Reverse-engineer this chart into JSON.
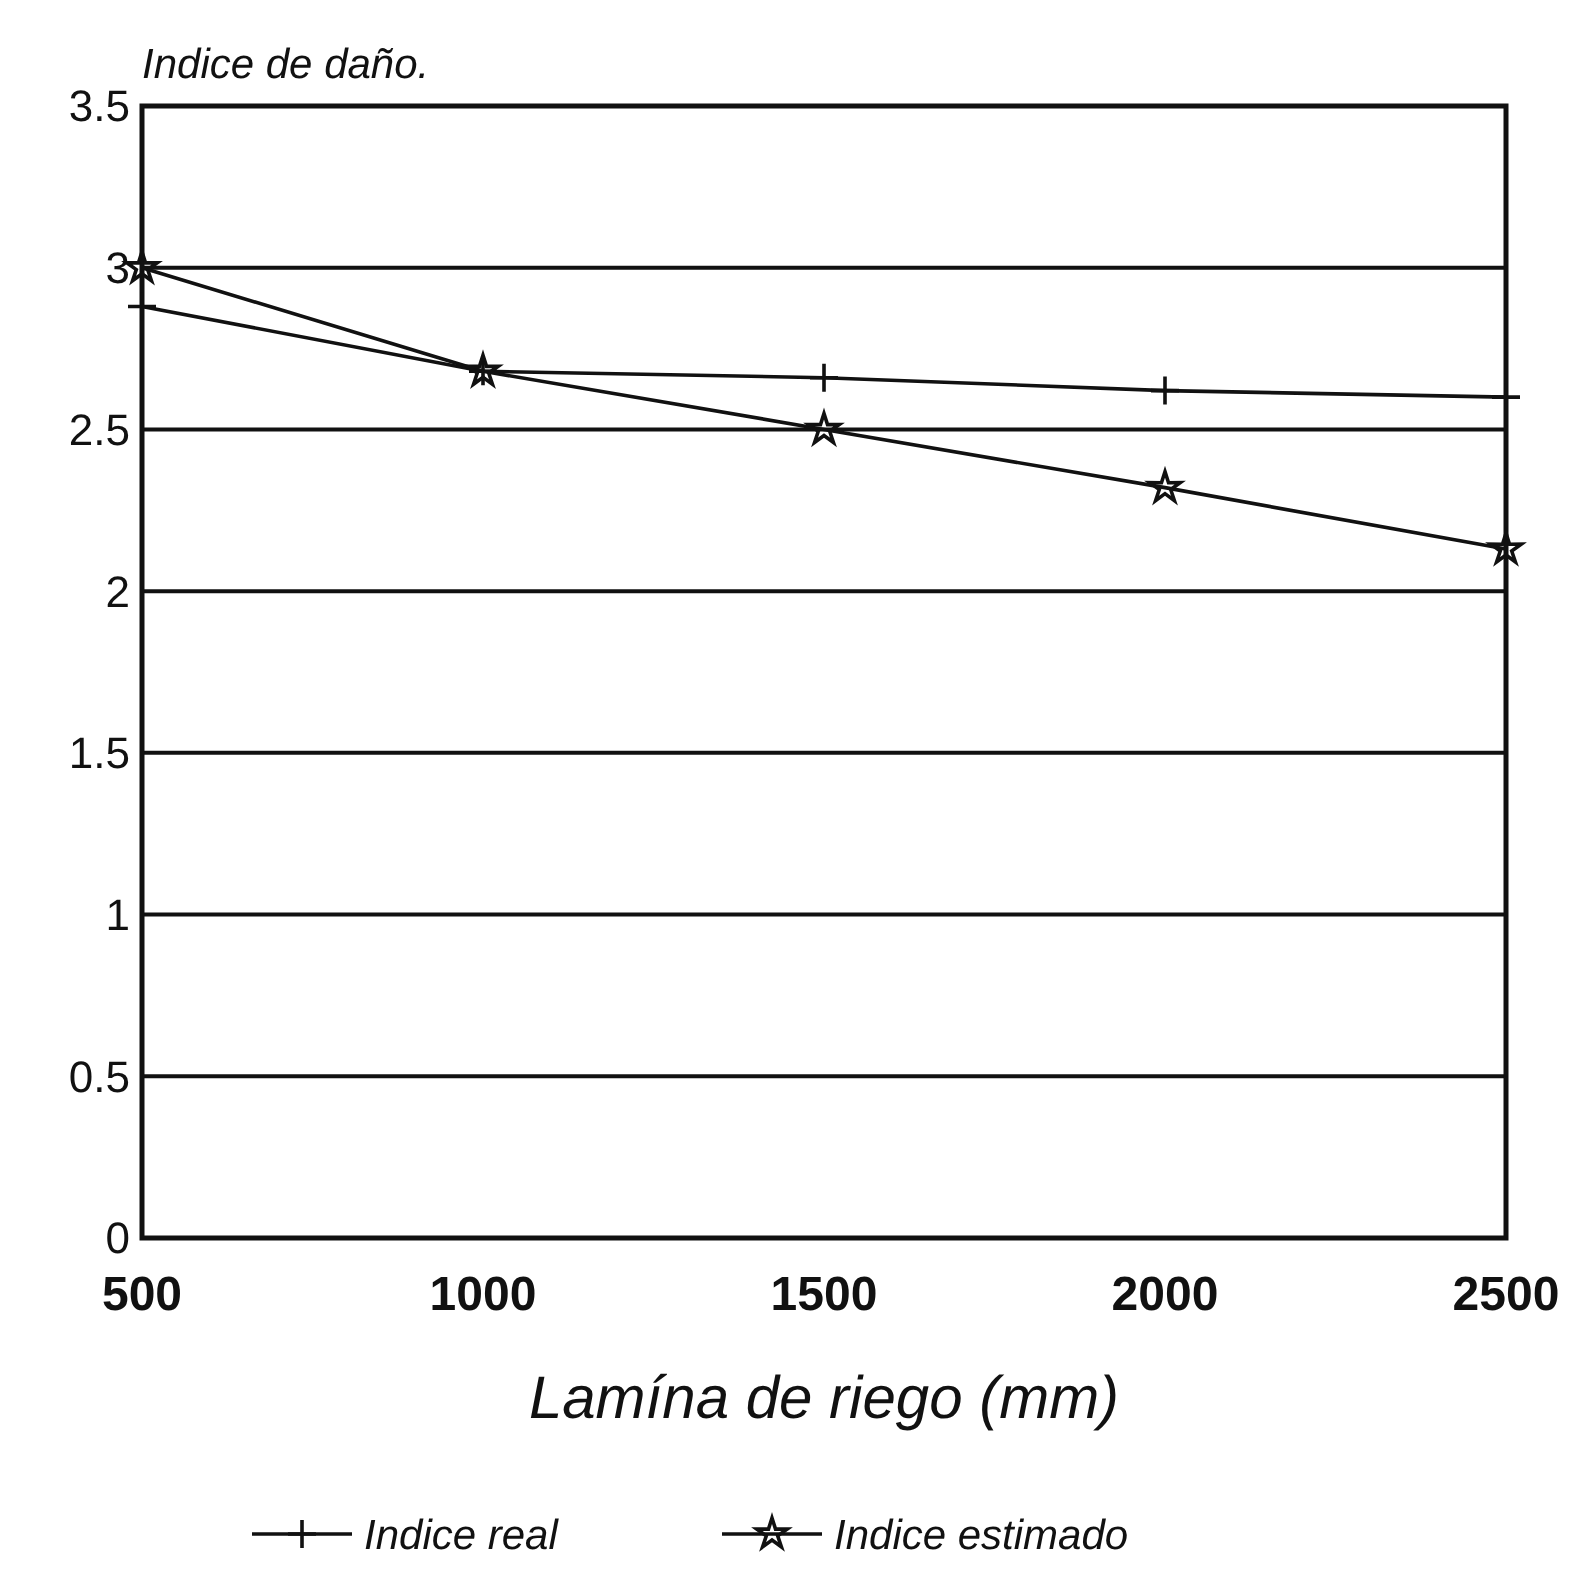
{
  "chart_data": {
    "type": "line",
    "ylabel": "Indice de daño.",
    "xlabel": "Lamína de riego (mm)",
    "x": [
      500,
      1000,
      1500,
      2000,
      2500
    ],
    "series": [
      {
        "name": "Indice real",
        "color": "#111111",
        "marker": "cross",
        "values": [
          2.88,
          2.68,
          2.66,
          2.62,
          2.6
        ]
      },
      {
        "name": "Indice estimado",
        "color": "#111111",
        "marker": "star",
        "values": [
          3.0,
          2.68,
          2.5,
          2.32,
          2.13
        ]
      }
    ],
    "xlim": [
      500,
      2500
    ],
    "xticks": [
      500,
      1000,
      1500,
      2000,
      2500
    ],
    "ylim": [
      0,
      3.5
    ],
    "yticks": [
      0,
      0.5,
      1,
      1.5,
      2,
      2.5,
      3,
      3.5
    ],
    "grid": "y",
    "legend": "bottom",
    "line_style": "solid"
  }
}
